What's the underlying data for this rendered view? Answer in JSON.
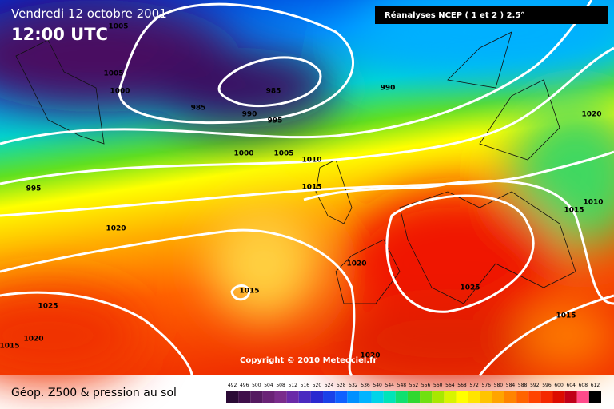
{
  "header": {
    "date": "Vendredi 12 octobre 2001",
    "time": "12:00 UTC",
    "source": "Réanalyses NCEP ( 1 et 2 ) 2.5°"
  },
  "isobar_labels": [
    1005,
    1005,
    1000,
    985,
    985,
    990,
    995,
    990,
    1020,
    1000,
    1005,
    1010,
    995,
    1015,
    1020,
    1015,
    1010,
    1015,
    1020,
    1025,
    1025,
    1015,
    1020,
    1015,
    1020
  ],
  "copyright": "Copyright © 2010 Meteociel.fr",
  "caption": "Géop. Z500 & pression au sol",
  "scale": {
    "labels": [
      492,
      496,
      500,
      504,
      508,
      512,
      516,
      520,
      524,
      528,
      532,
      536,
      540,
      544,
      548,
      552,
      556,
      560,
      564,
      568,
      572,
      576,
      580,
      584,
      588,
      592,
      596,
      600,
      604,
      608,
      612
    ],
    "colors": [
      "#2a0a35",
      "#3f0f4a",
      "#551a60",
      "#6a2276",
      "#7a2c8c",
      "#6a2aa8",
      "#4a2ac0",
      "#2a28d0",
      "#1a40e8",
      "#1060ff",
      "#0090ff",
      "#00b4ff",
      "#00d4e8",
      "#00e4b8",
      "#10e070",
      "#30d830",
      "#70e010",
      "#a8e800",
      "#d8f400",
      "#ffff00",
      "#ffe400",
      "#ffc400",
      "#ffa400",
      "#ff8400",
      "#ff6400",
      "#ff4400",
      "#f42800",
      "#dc0c00",
      "#c00018",
      "#ff4a8a",
      "#000000"
    ]
  }
}
